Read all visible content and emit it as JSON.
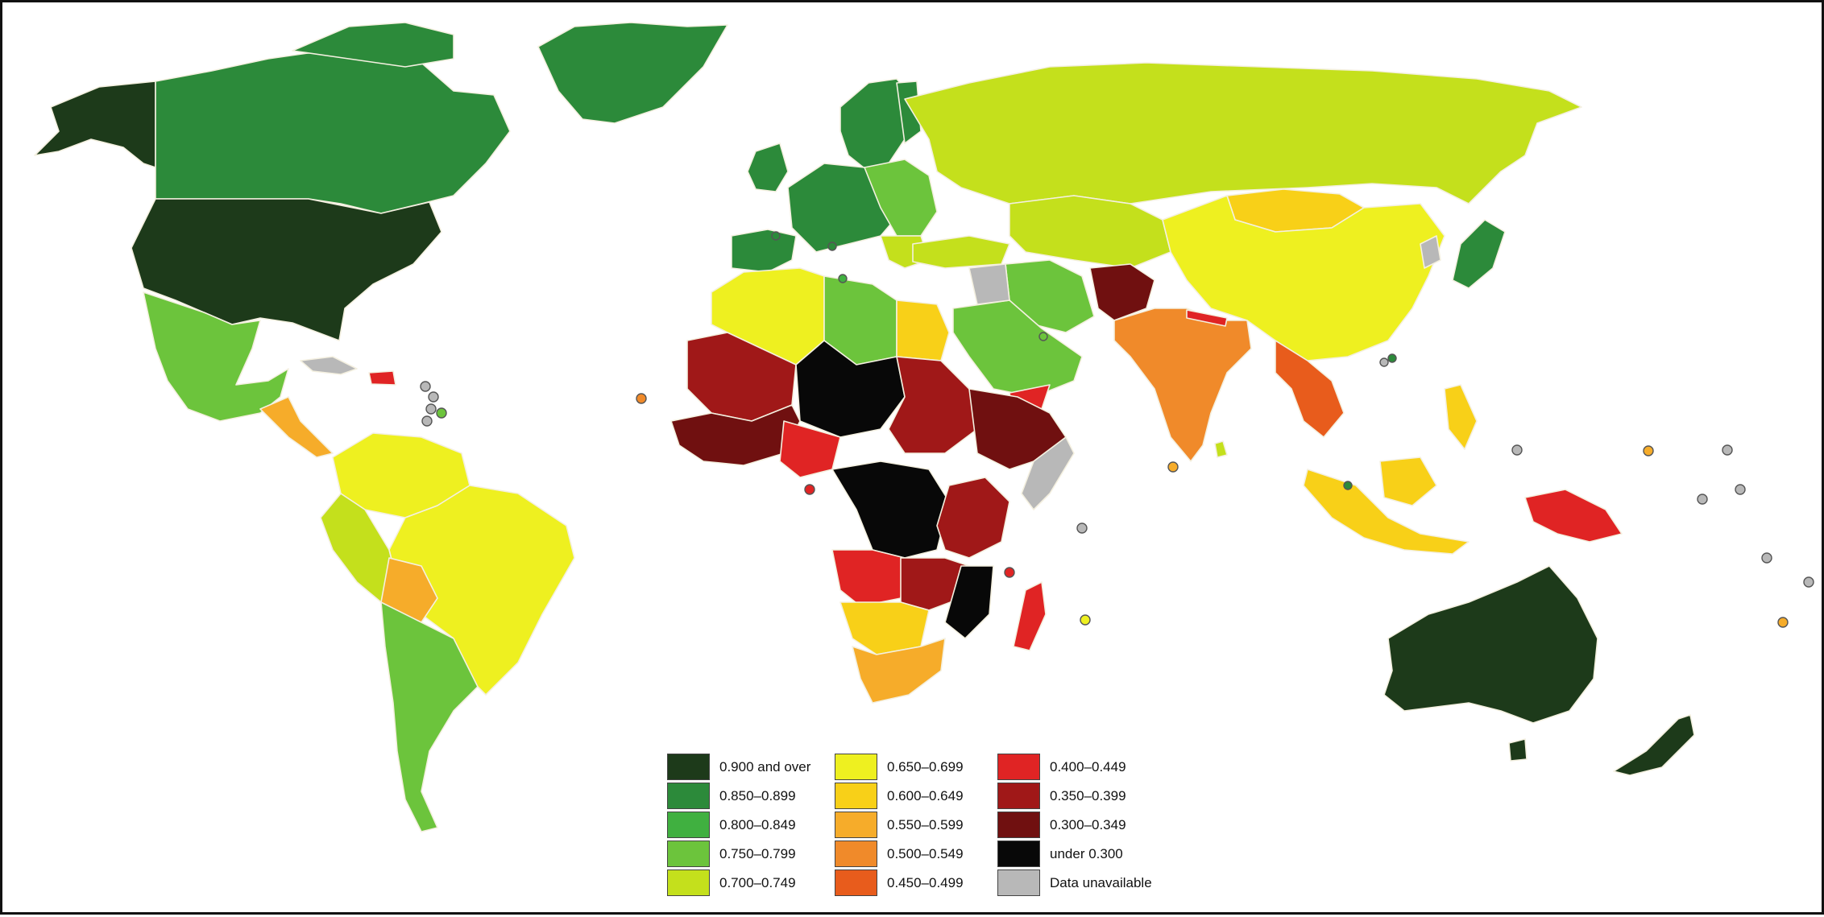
{
  "legend": {
    "items": [
      {
        "label": "0.900 and over",
        "color": "#1d3a1a"
      },
      {
        "label": "0.850–0.899",
        "color": "#2c8a3a"
      },
      {
        "label": "0.800–0.849",
        "color": "#40b040"
      },
      {
        "label": "0.750–0.799",
        "color": "#6cc43c"
      },
      {
        "label": "0.700–0.749",
        "color": "#c4e01c"
      },
      {
        "label": "0.650–0.699",
        "color": "#eef020"
      },
      {
        "label": "0.600–0.649",
        "color": "#f8d018"
      },
      {
        "label": "0.550–0.599",
        "color": "#f6ac2a"
      },
      {
        "label": "0.500–0.549",
        "color": "#f08a2a"
      },
      {
        "label": "0.450–0.499",
        "color": "#e85c1c"
      },
      {
        "label": "0.400–0.449",
        "color": "#e02424"
      },
      {
        "label": "0.350–0.399",
        "color": "#a01818"
      },
      {
        "label": "0.300–0.349",
        "color": "#701010"
      },
      {
        "label": "under 0.300",
        "color": "#080808"
      },
      {
        "label": "Data unavailable",
        "color": "#b8b8b8"
      }
    ]
  },
  "palette": {
    "c0": "#1d3a1a",
    "c1": "#2c8a3a",
    "c2": "#40b040",
    "c3": "#6cc43c",
    "c4": "#c4e01c",
    "c5": "#eef020",
    "c6": "#f8d018",
    "c7": "#f6ac2a",
    "c8": "#f08a2a",
    "c9": "#e85c1c",
    "c10": "#e02424",
    "c11": "#a01818",
    "c12": "#701010",
    "c13": "#080808",
    "c14": "#b8b8b8"
  }
}
